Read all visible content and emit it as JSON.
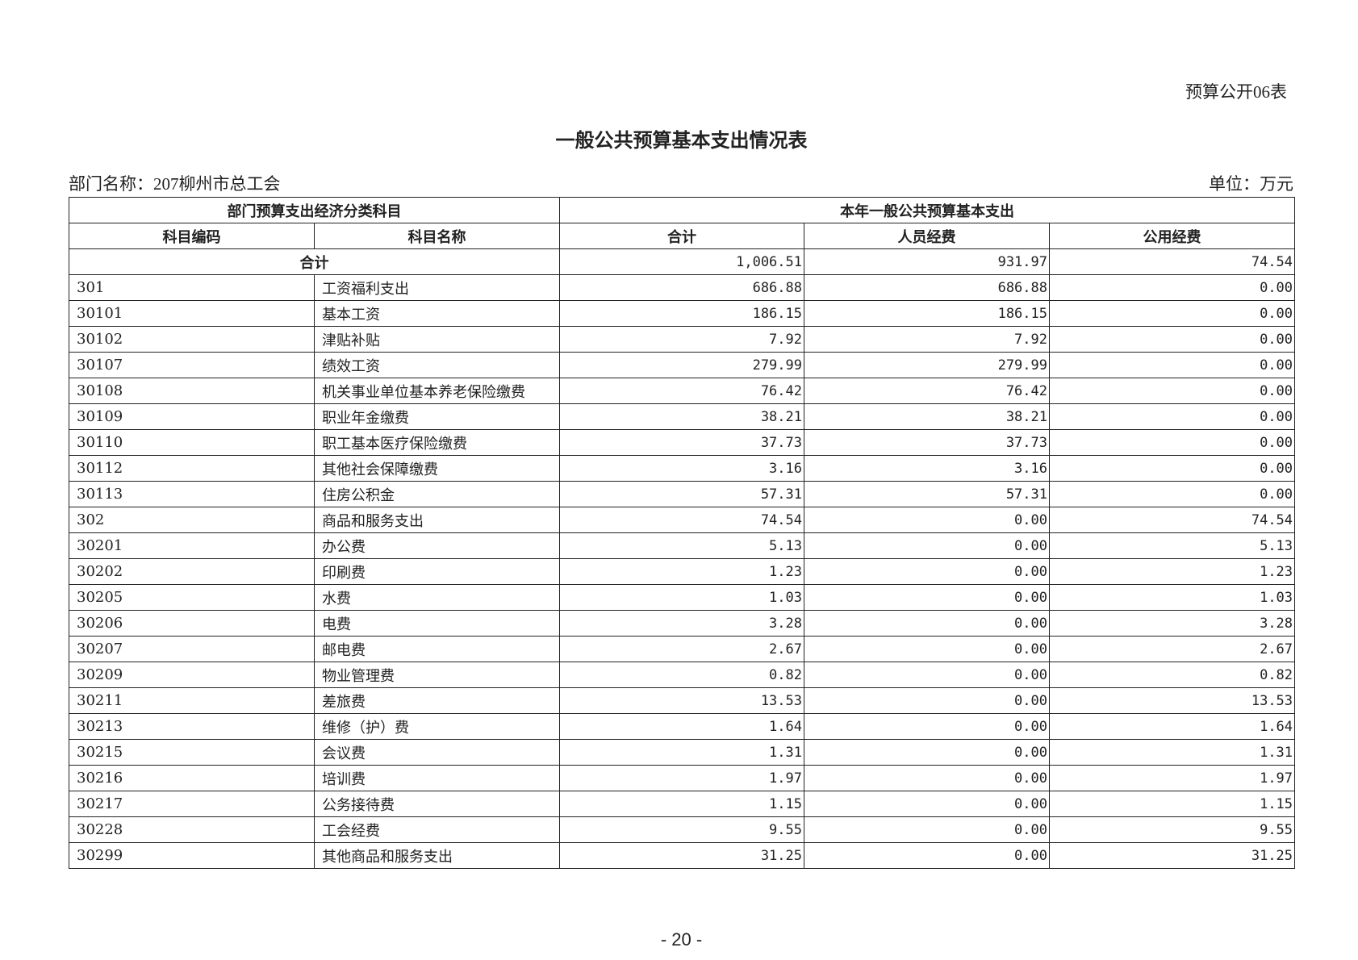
{
  "form_no": "预算公开06表",
  "title": "一般公共预算基本支出情况表",
  "dept_label": "部门名称：207柳州市总工会",
  "unit_label": "单位：万元",
  "header": {
    "group_left": "部门预算支出经济分类科目",
    "group_right": "本年一般公共预算基本支出",
    "code": "科目编码",
    "name": "科目名称",
    "total": "合计",
    "personnel": "人员经费",
    "public": "公用经费"
  },
  "total_row": {
    "label": "合计",
    "total": "1,006.51",
    "personnel": "931.97",
    "public": "74.54"
  },
  "rows": [
    {
      "code": "301",
      "name": "工资福利支出",
      "total": "686.88",
      "personnel": "686.88",
      "public": "0.00"
    },
    {
      "code": "30101",
      "name": "基本工资",
      "total": "186.15",
      "personnel": "186.15",
      "public": "0.00"
    },
    {
      "code": "30102",
      "name": "津贴补贴",
      "total": "7.92",
      "personnel": "7.92",
      "public": "0.00"
    },
    {
      "code": "30107",
      "name": "绩效工资",
      "total": "279.99",
      "personnel": "279.99",
      "public": "0.00"
    },
    {
      "code": "30108",
      "name": "机关事业单位基本养老保险缴费",
      "total": "76.42",
      "personnel": "76.42",
      "public": "0.00"
    },
    {
      "code": "30109",
      "name": "职业年金缴费",
      "total": "38.21",
      "personnel": "38.21",
      "public": "0.00"
    },
    {
      "code": "30110",
      "name": "职工基本医疗保险缴费",
      "total": "37.73",
      "personnel": "37.73",
      "public": "0.00"
    },
    {
      "code": "30112",
      "name": "其他社会保障缴费",
      "total": "3.16",
      "personnel": "3.16",
      "public": "0.00"
    },
    {
      "code": "30113",
      "name": "住房公积金",
      "total": "57.31",
      "personnel": "57.31",
      "public": "0.00"
    },
    {
      "code": "302",
      "name": "商品和服务支出",
      "total": "74.54",
      "personnel": "0.00",
      "public": "74.54"
    },
    {
      "code": "30201",
      "name": "办公费",
      "total": "5.13",
      "personnel": "0.00",
      "public": "5.13"
    },
    {
      "code": "30202",
      "name": "印刷费",
      "total": "1.23",
      "personnel": "0.00",
      "public": "1.23"
    },
    {
      "code": "30205",
      "name": "水费",
      "total": "1.03",
      "personnel": "0.00",
      "public": "1.03"
    },
    {
      "code": "30206",
      "name": "电费",
      "total": "3.28",
      "personnel": "0.00",
      "public": "3.28"
    },
    {
      "code": "30207",
      "name": "邮电费",
      "total": "2.67",
      "personnel": "0.00",
      "public": "2.67"
    },
    {
      "code": "30209",
      "name": "物业管理费",
      "total": "0.82",
      "personnel": "0.00",
      "public": "0.82"
    },
    {
      "code": "30211",
      "name": "差旅费",
      "total": "13.53",
      "personnel": "0.00",
      "public": "13.53"
    },
    {
      "code": "30213",
      "name": "维修（护）费",
      "total": "1.64",
      "personnel": "0.00",
      "public": "1.64"
    },
    {
      "code": "30215",
      "name": "会议费",
      "total": "1.31",
      "personnel": "0.00",
      "public": "1.31"
    },
    {
      "code": "30216",
      "name": "培训费",
      "total": "1.97",
      "personnel": "0.00",
      "public": "1.97"
    },
    {
      "code": "30217",
      "name": "公务接待费",
      "total": "1.15",
      "personnel": "0.00",
      "public": "1.15"
    },
    {
      "code": "30228",
      "name": "工会经费",
      "total": "9.55",
      "personnel": "0.00",
      "public": "9.55"
    },
    {
      "code": "30299",
      "name": "其他商品和服务支出",
      "total": "31.25",
      "personnel": "0.00",
      "public": "31.25"
    }
  ],
  "page_number": "- 20 -"
}
